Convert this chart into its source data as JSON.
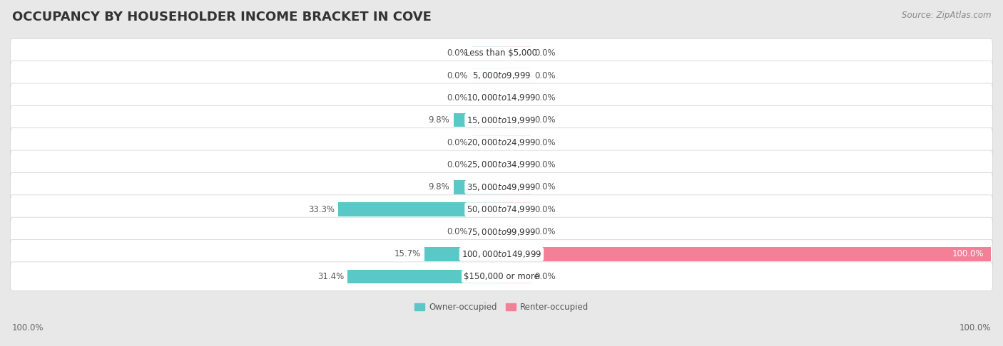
{
  "title": "OCCUPANCY BY HOUSEHOLDER INCOME BRACKET IN COVE",
  "source": "Source: ZipAtlas.com",
  "categories": [
    "Less than $5,000",
    "$5,000 to $9,999",
    "$10,000 to $14,999",
    "$15,000 to $19,999",
    "$20,000 to $24,999",
    "$25,000 to $34,999",
    "$35,000 to $49,999",
    "$50,000 to $74,999",
    "$75,000 to $99,999",
    "$100,000 to $149,999",
    "$150,000 or more"
  ],
  "owner_values": [
    0.0,
    0.0,
    0.0,
    9.8,
    0.0,
    0.0,
    9.8,
    33.3,
    0.0,
    15.7,
    31.4
  ],
  "renter_values": [
    0.0,
    0.0,
    0.0,
    0.0,
    0.0,
    0.0,
    0.0,
    0.0,
    0.0,
    100.0,
    0.0
  ],
  "owner_color": "#5BC8C8",
  "renter_color": "#F48098",
  "owner_label": "Owner-occupied",
  "renter_label": "Renter-occupied",
  "bg_color": "#e8e8e8",
  "bar_bg_color": "#ffffff",
  "max_value": 100.0,
  "min_stub": 6.0,
  "bar_height": 0.62,
  "title_fontsize": 13,
  "label_fontsize": 8.5,
  "cat_fontsize": 8.5,
  "axis_label_fontsize": 8.5,
  "source_fontsize": 8.5
}
